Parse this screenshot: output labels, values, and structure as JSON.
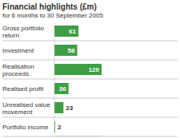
{
  "chart_data": {
    "type": "bar",
    "orientation": "horizontal",
    "title": "Financial highlights (£m)",
    "subtitle": "for 6 months to 30 September 2005",
    "categories": [
      "Gross portfolio return",
      "Investment",
      "Realisation proceeds",
      "Realised profit",
      "Unrealised value movement",
      "Portfolio income"
    ],
    "values": [
      61,
      58,
      120,
      36,
      23,
      2
    ],
    "color": "#3f9e45",
    "xlim": [
      0,
      120
    ],
    "data_labels": true,
    "tick_labels": false
  }
}
